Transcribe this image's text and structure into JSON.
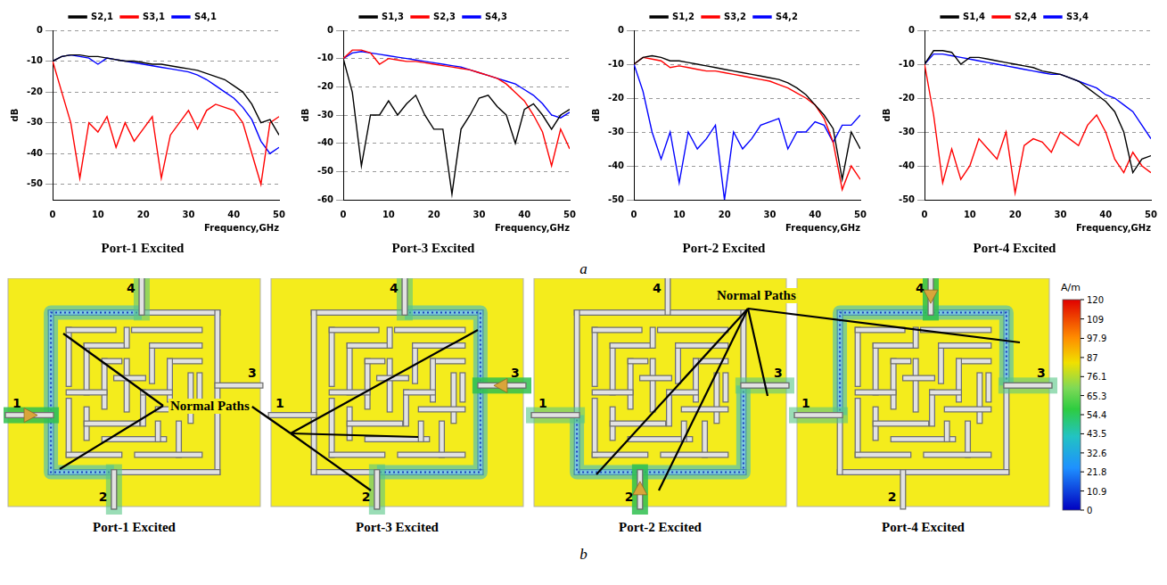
{
  "chart_data": [
    {
      "type": "line",
      "title": "Port-1 Excited",
      "x_label": "Frequency,GHz",
      "y_label": "dB",
      "x": [
        0,
        2,
        4,
        6,
        8,
        10,
        12,
        14,
        16,
        18,
        20,
        22,
        24,
        26,
        28,
        30,
        32,
        34,
        36,
        38,
        40,
        42,
        44,
        46,
        48,
        50
      ],
      "series": [
        {
          "name": "S2,1",
          "color": "#000000",
          "values": [
            -10,
            -8.5,
            -8,
            -8,
            -8.5,
            -8.5,
            -9,
            -9.5,
            -10,
            -10,
            -10.5,
            -11,
            -11,
            -11.5,
            -12,
            -12.5,
            -13,
            -14,
            -15,
            -16,
            -18,
            -20,
            -24,
            -30,
            -29,
            -34
          ]
        },
        {
          "name": "S3,1",
          "color": "#ff0000",
          "values": [
            -10,
            -20,
            -30,
            -48,
            -30,
            -33,
            -28,
            -38,
            -30,
            -36,
            -32,
            -28,
            -48,
            -34,
            -30,
            -26,
            -32,
            -26,
            -24,
            -25,
            -26,
            -30,
            -40,
            -50,
            -30,
            -28
          ]
        },
        {
          "name": "S4,1",
          "color": "#0000ff",
          "values": [
            -10,
            -8.5,
            -8,
            -8.5,
            -9,
            -11,
            -9,
            -9.5,
            -10,
            -10.5,
            -11,
            -11.5,
            -12,
            -12.5,
            -13,
            -13.5,
            -14.5,
            -16,
            -18,
            -20,
            -22,
            -25,
            -29,
            -36,
            -40,
            -38
          ]
        }
      ],
      "xlim": [
        0,
        50
      ],
      "xticks": [
        0,
        10,
        20,
        30,
        40,
        50
      ],
      "ylim": [
        -55,
        0
      ],
      "yticks": [
        -50,
        -40,
        -30,
        -20,
        -10,
        0
      ],
      "grid": "y",
      "legend": "top"
    },
    {
      "type": "line",
      "title": "Port-3 Excited",
      "x_label": "Frequency,GHz",
      "y_label": "dB",
      "x": [
        0,
        2,
        4,
        6,
        8,
        10,
        12,
        14,
        16,
        18,
        20,
        22,
        24,
        26,
        28,
        30,
        32,
        34,
        36,
        38,
        40,
        42,
        44,
        46,
        48,
        50
      ],
      "series": [
        {
          "name": "S1,3",
          "color": "#000000",
          "values": [
            -10,
            -22,
            -48,
            -30,
            -30,
            -25,
            -30,
            -26,
            -23,
            -30,
            -35,
            -35,
            -58,
            -35,
            -30,
            -24,
            -23,
            -27,
            -30,
            -40,
            -28,
            -26,
            -30,
            -35,
            -30,
            -28
          ]
        },
        {
          "name": "S2,3",
          "color": "#ff0000",
          "values": [
            -10,
            -7,
            -7,
            -8,
            -12,
            -10,
            -10.5,
            -11,
            -11,
            -11.5,
            -12,
            -12.5,
            -13,
            -13.5,
            -14,
            -15,
            -16,
            -17,
            -19,
            -22,
            -25,
            -30,
            -36,
            -48,
            -35,
            -42
          ]
        },
        {
          "name": "S4,3",
          "color": "#0000ff",
          "values": [
            -10,
            -8,
            -7.5,
            -8,
            -8.5,
            -9,
            -9.5,
            -10,
            -10.5,
            -11,
            -11.5,
            -12,
            -12.5,
            -13,
            -14,
            -15,
            -16,
            -17,
            -18,
            -19,
            -21,
            -23,
            -26,
            -30,
            -31,
            -29
          ]
        }
      ],
      "xlim": [
        0,
        50
      ],
      "xticks": [
        0,
        10,
        20,
        30,
        40,
        50
      ],
      "ylim": [
        -60,
        0
      ],
      "yticks": [
        -60,
        -50,
        -40,
        -30,
        -20,
        -10,
        0
      ],
      "grid": "y",
      "legend": "top"
    },
    {
      "type": "line",
      "title": "Port-2 Excited",
      "x_label": "Frequency,GHz",
      "y_label": "dB",
      "x": [
        0,
        2,
        4,
        6,
        8,
        10,
        12,
        14,
        16,
        18,
        20,
        22,
        24,
        26,
        28,
        30,
        32,
        34,
        36,
        38,
        40,
        42,
        44,
        46,
        48,
        50
      ],
      "series": [
        {
          "name": "S1,2",
          "color": "#000000",
          "values": [
            -10,
            -8,
            -7.5,
            -8,
            -9,
            -9,
            -9.5,
            -10,
            -10.5,
            -11,
            -11.5,
            -12,
            -12.5,
            -13,
            -13.5,
            -14,
            -14.5,
            -15.5,
            -17,
            -19,
            -22,
            -25,
            -29,
            -44,
            -30,
            -35
          ]
        },
        {
          "name": "S3,2",
          "color": "#ff0000",
          "values": [
            -10,
            -8,
            -8.5,
            -9,
            -11,
            -10.5,
            -11,
            -11.5,
            -12,
            -12,
            -12.5,
            -13,
            -13.5,
            -14,
            -14.5,
            -15,
            -16,
            -17,
            -18.5,
            -20,
            -22,
            -26,
            -33,
            -47,
            -40,
            -44
          ]
        },
        {
          "name": "S4,2",
          "color": "#0000ff",
          "values": [
            -10,
            -18,
            -30,
            -38,
            -30,
            -45,
            -30,
            -35,
            -32,
            -28,
            -50,
            -30,
            -35,
            -32,
            -28,
            -27,
            -26,
            -35,
            -30,
            -30,
            -27,
            -28,
            -33,
            -28,
            -28,
            -25
          ]
        }
      ],
      "xlim": [
        0,
        50
      ],
      "xticks": [
        0,
        10,
        20,
        30,
        40,
        50
      ],
      "ylim": [
        -50,
        0
      ],
      "yticks": [
        -50,
        -40,
        -30,
        -20,
        -10,
        0
      ],
      "grid": "y",
      "legend": "top"
    },
    {
      "type": "line",
      "title": "Port-4 Excited",
      "x_label": "Frequency,GHz",
      "y_label": "dB",
      "x": [
        0,
        2,
        4,
        6,
        8,
        10,
        12,
        14,
        16,
        18,
        20,
        22,
        24,
        26,
        28,
        30,
        32,
        34,
        36,
        38,
        40,
        42,
        44,
        46,
        48,
        50
      ],
      "series": [
        {
          "name": "S1,4",
          "color": "#000000",
          "values": [
            -10,
            -6,
            -6,
            -6.5,
            -10,
            -8,
            -8,
            -8.5,
            -9,
            -9.5,
            -10,
            -10.5,
            -11,
            -12,
            -12.5,
            -13,
            -14,
            -15,
            -17,
            -19,
            -21,
            -24,
            -30,
            -42,
            -38,
            -37
          ]
        },
        {
          "name": "S2,4",
          "color": "#ff0000",
          "values": [
            -10,
            -25,
            -45,
            -35,
            -44,
            -40,
            -32,
            -35,
            -38,
            -30,
            -48,
            -34,
            -32,
            -33,
            -36,
            -30,
            -32,
            -34,
            -28,
            -25,
            -30,
            -38,
            -42,
            -36,
            -40,
            -42
          ]
        },
        {
          "name": "S3,4",
          "color": "#0000ff",
          "values": [
            -10,
            -7,
            -7,
            -7.5,
            -8,
            -8.5,
            -9,
            -9.5,
            -10,
            -10.5,
            -11,
            -11.5,
            -12,
            -12.5,
            -13,
            -13,
            -14,
            -15,
            -16,
            -17,
            -19,
            -20,
            -22,
            -24,
            -28,
            -32
          ]
        }
      ],
      "xlim": [
        0,
        50
      ],
      "xticks": [
        0,
        10,
        20,
        30,
        40,
        50
      ],
      "ylim": [
        -50,
        0
      ],
      "yticks": [
        -50,
        -40,
        -30,
        -20,
        -10,
        0
      ],
      "grid": "y",
      "legend": "top"
    }
  ],
  "panel_labels": [
    "a",
    "b"
  ],
  "field_maps": [
    {
      "caption": "Port-1 Excited",
      "excited": "1",
      "ports": [
        "1",
        "2",
        "3",
        "4"
      ]
    },
    {
      "caption": "Port-3 Excited",
      "excited": "3",
      "ports": [
        "1",
        "2",
        "3",
        "4"
      ]
    },
    {
      "caption": "Port-2 Excited",
      "excited": "2",
      "ports": [
        "1",
        "2",
        "3",
        "4"
      ]
    },
    {
      "caption": "Port-4 Excited",
      "excited": "4",
      "ports": [
        "1",
        "2",
        "3",
        "4"
      ]
    }
  ],
  "annotations": [
    {
      "text": "Normal Paths"
    },
    {
      "text": "Normal Paths"
    }
  ],
  "colorbar": {
    "unit": "A/m",
    "range": [
      0,
      120
    ],
    "ticks": [
      0,
      10.9,
      21.8,
      32.6,
      43.5,
      54.4,
      65.3,
      76.1,
      87,
      97.9,
      109,
      120
    ]
  }
}
